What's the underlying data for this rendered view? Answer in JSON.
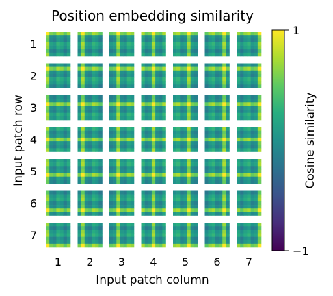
{
  "chart_data": {
    "type": "heatmap",
    "title": "Position embedding similarity",
    "xlabel": "Input patch column",
    "ylabel": "Input patch row",
    "rows": [
      "1",
      "2",
      "3",
      "4",
      "5",
      "6",
      "7"
    ],
    "columns": [
      "1",
      "2",
      "3",
      "4",
      "5",
      "6",
      "7"
    ],
    "subplot_grid": [
      7,
      7
    ],
    "cells_per_subplot": [
      7,
      7
    ],
    "value_encoding": "cosine similarity between the embedding of patch (row, column) and every other patch embedding; brightest where row or column matches",
    "colormap": "viridis",
    "colorbar": {
      "label": "Cosine similarity",
      "min": -1,
      "max": 1,
      "tick_labels": [
        "1",
        "−1"
      ]
    }
  }
}
